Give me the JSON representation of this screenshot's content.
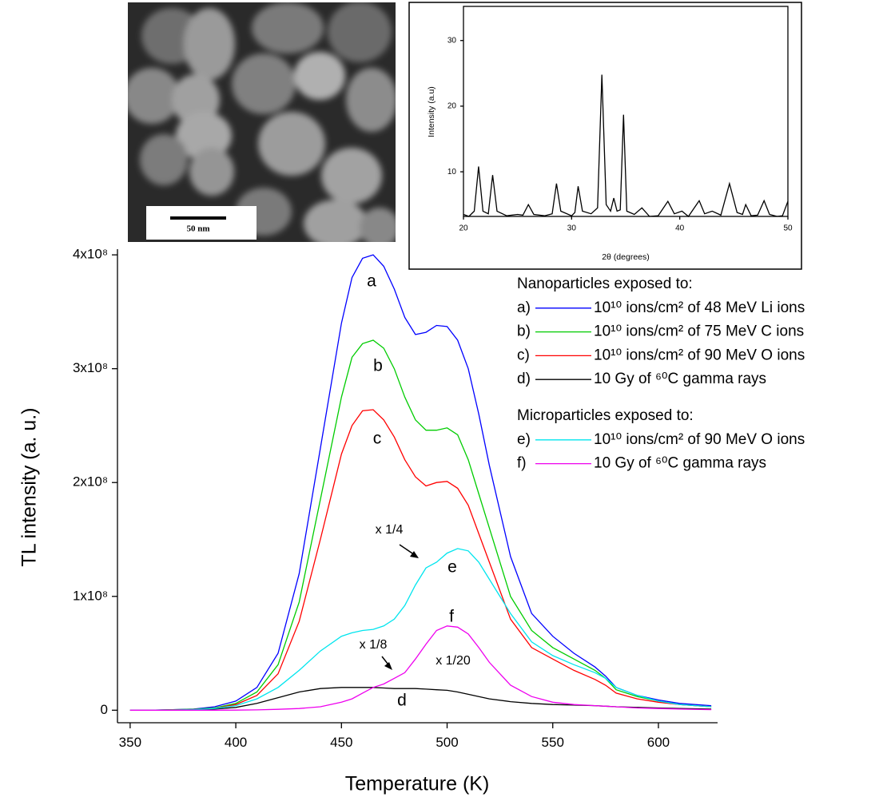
{
  "sem_image": {
    "scale_bar_label": "50 nm"
  },
  "chart_data": [
    {
      "type": "line",
      "x_label": "Temperature (K)",
      "y_label": "TL intensity (a. u.)",
      "x": [
        350,
        360,
        370,
        380,
        390,
        400,
        410,
        420,
        430,
        440,
        450,
        455,
        460,
        465,
        470,
        475,
        480,
        485,
        490,
        495,
        500,
        505,
        510,
        515,
        520,
        530,
        540,
        550,
        560,
        570,
        575,
        580,
        590,
        600,
        610,
        625
      ],
      "series": [
        {
          "name": "10¹⁰ ions/cm² of 48 MeV Li ions",
          "legend_key": "a)",
          "color": "#0000ff",
          "values": [
            0,
            0,
            500000.0,
            1000000.0,
            3000000.0,
            8000000.0,
            20000000.0,
            50000000.0,
            120000000.0,
            230000000.0,
            340000000.0,
            380000000.0,
            397000000.0,
            400000000.0,
            390000000.0,
            370000000.0,
            345000000.0,
            330000000.0,
            332000000.0,
            338000000.0,
            337000000.0,
            325000000.0,
            300000000.0,
            260000000.0,
            215000000.0,
            135000000.0,
            85000000.0,
            65000000.0,
            50000000.0,
            38000000.0,
            30000000.0,
            20000000.0,
            13000000.0,
            9000000.0,
            6000000.0,
            4000000.0
          ]
        },
        {
          "name": "10¹⁰ ions/cm² of 75 MeV C ions",
          "legend_key": "b)",
          "color": "#00cc00",
          "values": [
            0,
            0,
            400000.0,
            800000.0,
            2000000.0,
            6000000.0,
            16000000.0,
            40000000.0,
            95000000.0,
            185000000.0,
            275000000.0,
            310000000.0,
            322000000.0,
            325000000.0,
            318000000.0,
            300000000.0,
            275000000.0,
            255000000.0,
            246000000.0,
            246000000.0,
            248000000.0,
            242000000.0,
            220000000.0,
            190000000.0,
            160000000.0,
            100000000.0,
            70000000.0,
            55000000.0,
            45000000.0,
            35000000.0,
            28000000.0,
            18000000.0,
            12000000.0,
            8000000.0,
            5000000.0,
            3000000.0
          ]
        },
        {
          "name": "10¹⁰ ions/cm² of 90 MeV O ions",
          "legend_key": "c)",
          "color": "#ff0000",
          "values": [
            0,
            0,
            300000.0,
            600000.0,
            1500000.0,
            5000000.0,
            13000000.0,
            32000000.0,
            78000000.0,
            150000000.0,
            225000000.0,
            250000000.0,
            263000000.0,
            264000000.0,
            255000000.0,
            240000000.0,
            220000000.0,
            205000000.0,
            197000000.0,
            200000000.0,
            201000000.0,
            195000000.0,
            180000000.0,
            155000000.0,
            130000000.0,
            80000000.0,
            55000000.0,
            45000000.0,
            35000000.0,
            27000000.0,
            22000000.0,
            15000000.0,
            10000000.0,
            7000000.0,
            5000000.0,
            3000000.0
          ]
        },
        {
          "name": "10 Gy of ⁶⁰C gamma rays",
          "legend_key": "d)",
          "color": "#000000",
          "values": [
            0,
            0,
            100000.0,
            300000.0,
            1000000.0,
            2500000.0,
            6000000.0,
            11000000.0,
            16000000.0,
            19000000.0,
            20000000.0,
            20000000.0,
            20000000.0,
            20000000.0,
            19500000.0,
            19000000.0,
            19000000.0,
            19000000.0,
            18500000.0,
            18000000.0,
            17500000.0,
            16000000.0,
            14000000.0,
            12000000.0,
            10000000.0,
            7500000.0,
            6000000.0,
            5000000.0,
            4500000.0,
            4000000.0,
            3500000.0,
            3000000.0,
            2500000.0,
            2000000.0,
            1500000.0,
            1000000.0
          ]
        },
        {
          "name": "10¹⁰ ions/cm² of 90 MeV O ions",
          "legend_key": "e)",
          "color": "#00e5ee",
          "values": [
            0,
            0,
            200000.0,
            500000.0,
            1500000.0,
            4000000.0,
            10000000.0,
            20000000.0,
            35000000.0,
            52000000.0,
            65000000.0,
            68000000.0,
            70000000.0,
            71000000.0,
            74000000.0,
            80000000.0,
            92000000.0,
            110000000.0,
            125000000.0,
            130000000.0,
            138000000.0,
            142000000.0,
            140000000.0,
            130000000.0,
            115000000.0,
            85000000.0,
            60000000.0,
            48000000.0,
            40000000.0,
            33000000.0,
            28000000.0,
            20000000.0,
            13000000.0,
            8000000.0,
            5000000.0,
            3000000.0
          ]
        },
        {
          "name": "10 Gy of ⁶⁰C gamma rays",
          "legend_key": "f)",
          "color": "#ee00ee",
          "values": [
            0,
            0,
            0,
            0,
            0,
            100000.0,
            300000.0,
            800000.0,
            1500000.0,
            3000000.0,
            7000000.0,
            10000000.0,
            15000000.0,
            20000000.0,
            23000000.0,
            28000000.0,
            33000000.0,
            45000000.0,
            58000000.0,
            70000000.0,
            74000000.0,
            73000000.0,
            67000000.0,
            55000000.0,
            42000000.0,
            22000000.0,
            12000000.0,
            7000000.0,
            5000000.0,
            4000000.0,
            3500000.0,
            3000000.0,
            2000000.0,
            1500000.0,
            1000000.0,
            500000.0
          ]
        }
      ],
      "legend_titles": [
        "Nanoparticles exposed to:",
        "Microparticles exposed to:"
      ],
      "annotations": [
        "a",
        "b",
        "c",
        "d",
        "e",
        "f",
        "x 1/4",
        "x 1/8",
        "x 1/20"
      ],
      "xlim": [
        344,
        628
      ],
      "xticks": [
        350,
        400,
        450,
        500,
        550,
        600
      ],
      "ylim": [
        -11000000.0,
        405000000.0
      ],
      "yticks": [
        0,
        {
          "value": 100000000,
          "label": "1x10⁸"
        },
        {
          "value": 200000000,
          "label": "2x10⁸"
        },
        {
          "value": 300000000,
          "label": "3x10⁸"
        },
        {
          "value": 400000000,
          "label": "4x10⁸"
        }
      ]
    },
    {
      "type": "line",
      "x_label": "2θ (degrees)",
      "y_label": "Intensity (a.u)",
      "x": [
        20,
        20.5,
        21,
        21.4,
        21.8,
        22.3,
        22.7,
        23.1,
        24,
        25,
        25.5,
        26,
        26.5,
        27.5,
        28.2,
        28.6,
        29,
        30,
        30.3,
        30.6,
        31,
        31.8,
        32.4,
        32.8,
        33.2,
        33.6,
        33.9,
        34.2,
        34.5,
        34.8,
        35.1,
        35.8,
        36.5,
        37.2,
        38,
        38.9,
        39.5,
        40.2,
        40.8,
        41.8,
        42.3,
        43,
        43.8,
        44.6,
        45.3,
        45.8,
        46.1,
        46.6,
        47.2,
        47.8,
        48.3,
        49,
        49.5,
        50
      ],
      "values": [
        3.5,
        3.2,
        4,
        10.8,
        4,
        3.6,
        9.5,
        4,
        3.3,
        3.5,
        3.4,
        5,
        3.5,
        3.3,
        3.6,
        8.2,
        4,
        3.3,
        3.8,
        7.8,
        4,
        3.6,
        4.5,
        24.8,
        5,
        4,
        6,
        4,
        4.2,
        18.7,
        4,
        3.5,
        4.5,
        3.2,
        3.3,
        5.5,
        3.6,
        4,
        3.2,
        5.6,
        3.6,
        4,
        3.4,
        8.2,
        3.8,
        3.5,
        5,
        3.3,
        3.4,
        5.6,
        3.5,
        3.2,
        3.3,
        5.5
      ],
      "color": "#000000",
      "xlim": [
        20,
        50
      ],
      "xticks": [
        20,
        30,
        40,
        50
      ],
      "ylim": [
        3.2,
        35.2
      ],
      "yticks": [
        10,
        20,
        30
      ]
    }
  ]
}
